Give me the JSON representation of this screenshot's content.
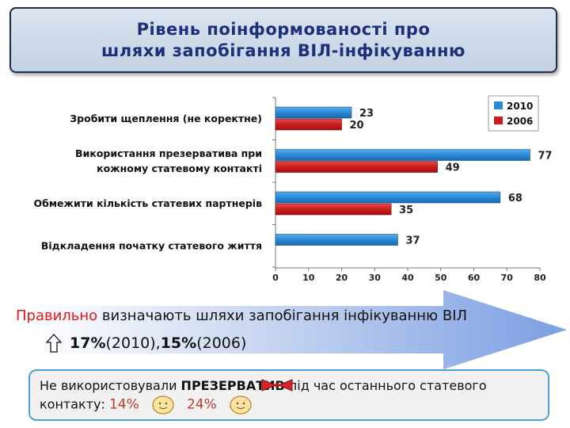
{
  "title": {
    "line1": "Рівень поінформованості про",
    "line2": "шляхи запобігання ВІЛ-інфікуванню"
  },
  "chart_data": {
    "type": "bar",
    "orientation": "horizontal",
    "categories": [
      [
        "Зробити щеплення (не коректне)"
      ],
      [
        "Використання презерватива при",
        "кожному статевому контакті"
      ],
      [
        "Обмежити кількість статевих партнерів"
      ],
      [
        "Відкладення початку статевого життя"
      ]
    ],
    "series": [
      {
        "name": "2010",
        "color": "#2a88d4",
        "values": [
          23,
          77,
          68,
          37
        ]
      },
      {
        "name": "2006",
        "color": "#cc1d1d",
        "values": [
          20,
          49,
          35,
          null
        ]
      }
    ],
    "xlim": [
      0,
      80
    ],
    "xticks": [
      "0",
      "10",
      "20",
      "30",
      "40",
      "50",
      "60",
      "70",
      "80"
    ],
    "grid": false,
    "legend": "top-right"
  },
  "arrow": {
    "highlight": "Правильно",
    "rest": " визначають шляхи запобігання інфікуванню ВІЛ",
    "p2010": "17%",
    "y2010": " (2010), ",
    "p2006": "15%",
    "y2006": " (2006)"
  },
  "note": {
    "before": "Не використовували ",
    "bold": "ПРЕЗЕРВАТИВ",
    "after": " під час останнього статевого",
    "line2": "контакту:",
    "p2010": "14%",
    "p2006": "24%"
  },
  "colors": {
    "accent": "#1d2f7a",
    "highlight": "#e0161c",
    "border": "#4ba0d8"
  }
}
